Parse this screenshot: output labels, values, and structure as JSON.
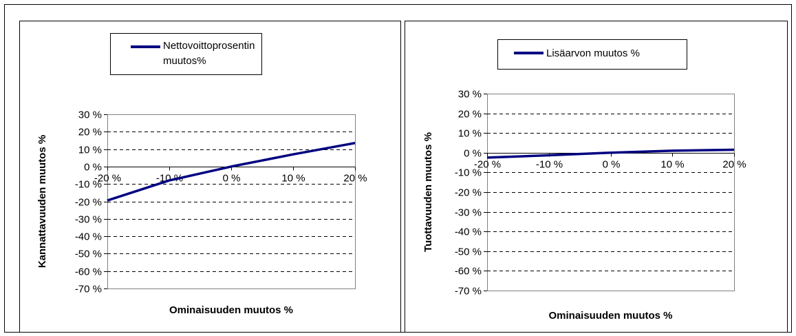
{
  "chart_data": [
    {
      "type": "line",
      "x": [
        "-20 %",
        "-10 %",
        "0 %",
        "10 %",
        "20 %"
      ],
      "x_values": [
        -20,
        -10,
        0,
        10,
        20
      ],
      "series": [
        {
          "name": "Nettovoittoprosentin muutos%",
          "name_lines": [
            "Nettovoittoprosentin",
            "muutos%"
          ],
          "color": "#000080",
          "values": [
            -19.5,
            -8,
            0,
            7,
            13.5
          ]
        }
      ],
      "xlabel": "Ominaisuuden muutos %",
      "ylabel": "Kannattavuuden muutos %",
      "ylim": [
        -70,
        30
      ],
      "yticks": [
        "30 %",
        "20 %",
        "10 %",
        "0 %",
        "-10 %",
        "-20 %",
        "-30 %",
        "-40 %",
        "-50 %",
        "-60 %",
        "-70 %"
      ],
      "ytick_values": [
        30,
        20,
        10,
        0,
        -10,
        -20,
        -30,
        -40,
        -50,
        -60,
        -70
      ],
      "grid": true,
      "legend": "top"
    },
    {
      "type": "line",
      "x": [
        "-20 %",
        "-10 %",
        "0 %",
        "10 %",
        "20 %"
      ],
      "x_values": [
        -20,
        -10,
        0,
        10,
        20
      ],
      "series": [
        {
          "name": "Lisäarvon muutos %",
          "name_lines": [
            "Lisäarvon muutos %"
          ],
          "color": "#000080",
          "values": [
            -2.5,
            -1.3,
            0,
            1,
            1.5
          ]
        }
      ],
      "xlabel": "Ominaisuuden muutos %",
      "ylabel": "Tuottavuuden muutos %",
      "ylim": [
        -70,
        30
      ],
      "yticks": [
        "30 %",
        "20 %",
        "10 %",
        "0 %",
        "-10 %",
        "-20 %",
        "-30 %",
        "-40 %",
        "-50 %",
        "-60 %",
        "-70 %"
      ],
      "ytick_values": [
        30,
        20,
        10,
        0,
        -10,
        -20,
        -30,
        -40,
        -50,
        -60,
        -70
      ],
      "grid": true,
      "legend": "top"
    }
  ]
}
